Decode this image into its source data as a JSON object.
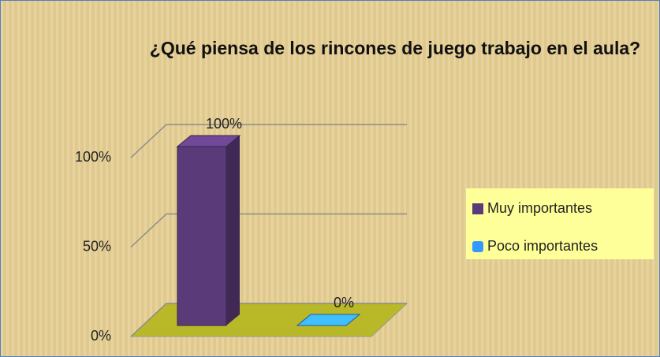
{
  "chart_data": {
    "type": "bar3d",
    "title": "¿Qué piensa de los rincones de juego trabajo en el aula?",
    "categories": [
      null
    ],
    "series": [
      {
        "name": "Muy importantes",
        "color": "#5b3a7a",
        "values": [
          100
        ],
        "value_labels": [
          "100%"
        ]
      },
      {
        "name": "Poco importantes",
        "color": "#3399ff",
        "values": [
          0
        ],
        "value_labels": [
          "0%"
        ]
      }
    ],
    "ylim": [
      0,
      100
    ],
    "yticks": [
      {
        "value": 0,
        "label": "0%"
      },
      {
        "value": 50,
        "label": "50%"
      },
      {
        "value": 100,
        "label": "100%"
      }
    ],
    "grid": true,
    "legend": "right",
    "floor_color": "#b8b828"
  }
}
